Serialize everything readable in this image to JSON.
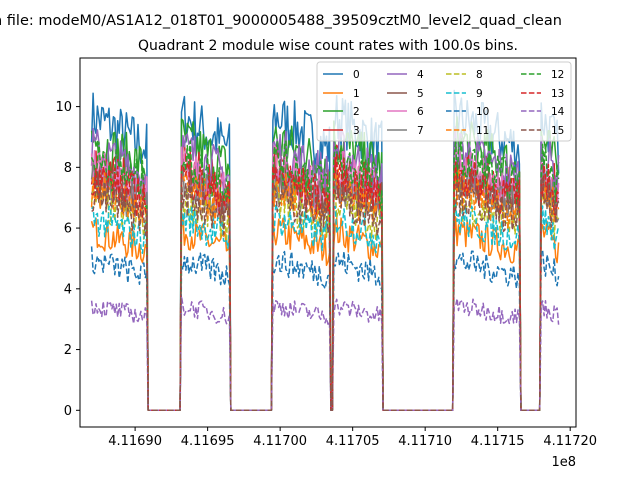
{
  "chart_data": {
    "type": "line",
    "suptitle": "n file: modeM0/AS1A12_018T01_9000005488_39509cztM0_level2_quad_clean",
    "title": "Quadrant 2 module wise count rates with 100.0s bins.",
    "xlabel": "",
    "ylabel": "",
    "x_offset_label": "1e8",
    "xlim": [
      411686200,
      411720400
    ],
    "ylim": [
      -0.55,
      11.6
    ],
    "xticks": [
      411690000,
      411695000,
      411700000,
      411705000,
      411710000,
      411715000,
      411720000
    ],
    "xtick_labels": [
      "4.11690",
      "4.11695",
      "4.11700",
      "4.11705",
      "4.11710",
      "4.11715",
      "4.11720"
    ],
    "yticks": [
      0,
      2,
      4,
      6,
      8,
      10
    ],
    "ytick_labels": [
      "0",
      "2",
      "4",
      "6",
      "8",
      "10"
    ],
    "segments": [
      [
        411687000,
        411690800
      ],
      [
        411693200,
        411696500
      ],
      [
        411699500,
        411703400
      ],
      [
        411703700,
        411707000
      ],
      [
        411712000,
        411716500
      ],
      [
        411718000,
        411719200
      ]
    ],
    "legend_position": "upper right",
    "series": [
      {
        "name": "0",
        "color": "#1f77b4",
        "dash": "solid",
        "level": 9.0
      },
      {
        "name": "1",
        "color": "#ff7f0e",
        "dash": "solid",
        "level": 5.5
      },
      {
        "name": "2",
        "color": "#2ca02c",
        "dash": "solid",
        "level": 8.3
      },
      {
        "name": "3",
        "color": "#d62728",
        "dash": "solid",
        "level": 7.5
      },
      {
        "name": "4",
        "color": "#9467bd",
        "dash": "solid",
        "level": 8.0
      },
      {
        "name": "5",
        "color": "#8c564b",
        "dash": "solid",
        "level": 7.1
      },
      {
        "name": "6",
        "color": "#e377c2",
        "dash": "solid",
        "level": 7.4
      },
      {
        "name": "7",
        "color": "#7f7f7f",
        "dash": "solid",
        "level": 7.0
      },
      {
        "name": "8",
        "color": "#bcbd22",
        "dash": "dashed",
        "level": 6.4
      },
      {
        "name": "9",
        "color": "#17becf",
        "dash": "dashed",
        "level": 5.9
      },
      {
        "name": "10",
        "color": "#1f77b4",
        "dash": "dashed",
        "level": 4.6
      },
      {
        "name": "11",
        "color": "#ff7f0e",
        "dash": "dashed",
        "level": 6.8
      },
      {
        "name": "12",
        "color": "#2ca02c",
        "dash": "dashed",
        "level": 7.7
      },
      {
        "name": "13",
        "color": "#d62728",
        "dash": "dashed",
        "level": 7.2
      },
      {
        "name": "14",
        "color": "#9467bd",
        "dash": "dashed",
        "level": 3.2
      },
      {
        "name": "15",
        "color": "#8c564b",
        "dash": "dashed",
        "level": 6.6
      }
    ]
  }
}
